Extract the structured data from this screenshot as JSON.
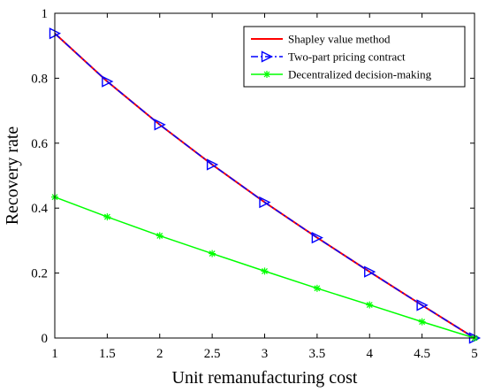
{
  "chart_data": {
    "type": "line",
    "xlabel": "Unit remanufacturing cost",
    "ylabel": "Recovery rate",
    "xlim": [
      1,
      5
    ],
    "ylim": [
      0,
      1
    ],
    "x_ticks": [
      "1",
      "1.5",
      "2",
      "2.5",
      "3",
      "3.5",
      "4",
      "4.5",
      "5"
    ],
    "y_ticks": [
      "0",
      "0.2",
      "0.4",
      "0.6",
      "0.8",
      "1"
    ],
    "x": [
      1,
      1.5,
      2,
      2.5,
      3,
      3.5,
      4,
      4.5,
      5
    ],
    "grid": false,
    "legend_position": "top-right",
    "series": [
      {
        "name": "Shapley value method",
        "color": "#ff0000",
        "line_style": "solid",
        "marker": "none",
        "values": [
          0.938,
          0.79,
          0.657,
          0.534,
          0.418,
          0.309,
          0.204,
          0.101,
          0
        ]
      },
      {
        "name": "Two-part pricing contract",
        "color": "#0000ff",
        "line_style": "dash-dot",
        "marker": "triangle-right",
        "values": [
          0.938,
          0.79,
          0.657,
          0.534,
          0.418,
          0.309,
          0.204,
          0.101,
          0
        ]
      },
      {
        "name": "Decentralized decision-making",
        "color": "#00ff00",
        "line_style": "solid",
        "marker": "asterisk",
        "values": [
          0.434,
          0.373,
          0.315,
          0.26,
          0.206,
          0.153,
          0.102,
          0.05,
          0
        ]
      }
    ]
  }
}
